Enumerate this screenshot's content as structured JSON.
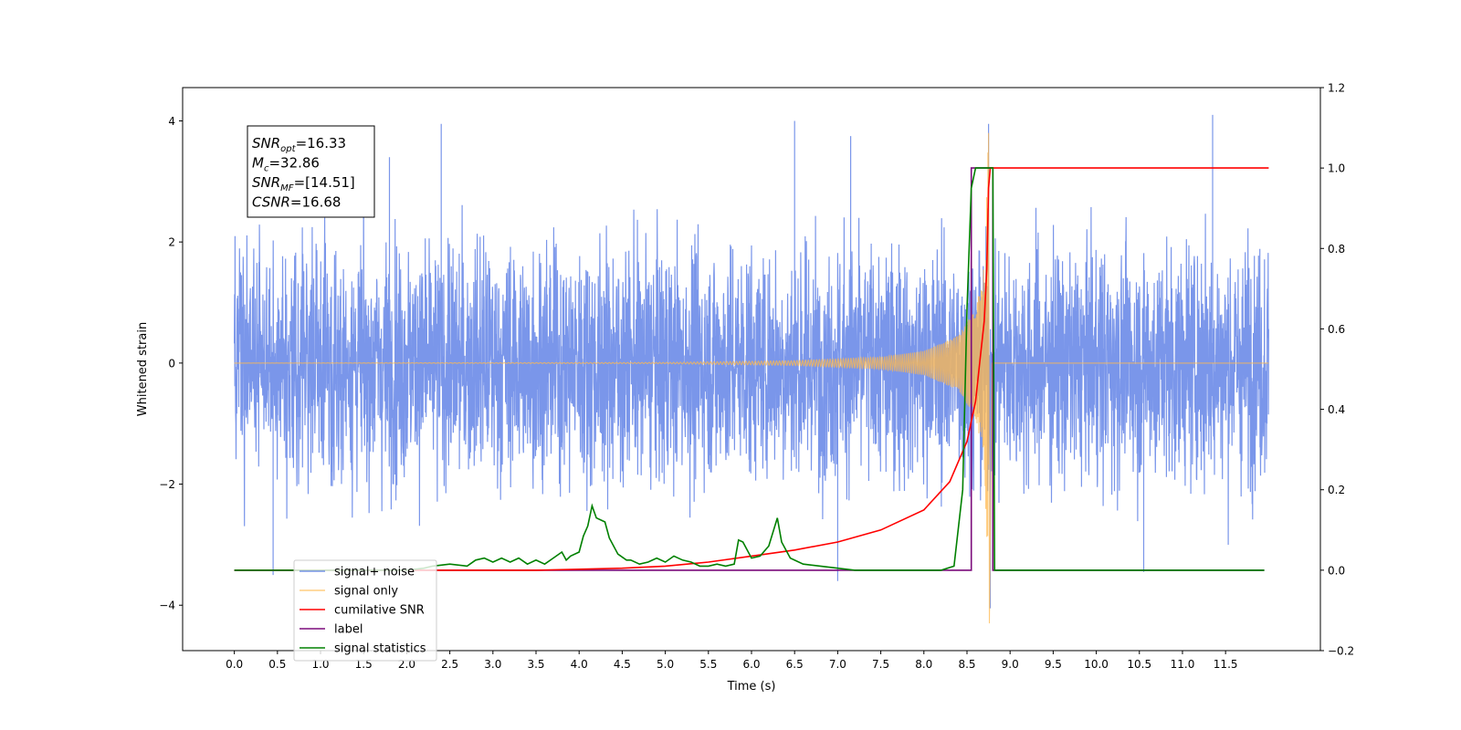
{
  "chart_data": {
    "type": "line",
    "xlabel": "Time (s)",
    "ylabel": "Whitened strain",
    "xlim": [
      -0.6,
      12.6
    ],
    "ylim": [
      -4.75,
      4.55
    ],
    "y2lim": [
      -0.2,
      1.2
    ],
    "xticks": [
      "0.0",
      "0.5",
      "1.0",
      "1.5",
      "2.0",
      "2.5",
      "3.0",
      "3.5",
      "4.0",
      "4.5",
      "5.0",
      "5.5",
      "6.0",
      "6.5",
      "7.0",
      "7.5",
      "8.0",
      "8.5",
      "9.0",
      "9.5",
      "10.0",
      "10.5",
      "11.0",
      "11.5"
    ],
    "yticks": [
      "4",
      "2",
      "0",
      "−2",
      "−4"
    ],
    "y2ticks": [
      "1.2",
      "1.0",
      "0.8",
      "0.6",
      "0.4",
      "0.2",
      "0.0",
      "−0.2"
    ],
    "grid": false,
    "legend_position": "lower-left",
    "annotation": {
      "lines": [
        {
          "sym": "SNR",
          "sub": "opt",
          "value": "=16.33"
        },
        {
          "sym": "M",
          "sub": "c",
          "value": "=32.86"
        },
        {
          "sym": "SNR",
          "sub": "MF",
          "value": "=[14.51]"
        },
        {
          "sym": "CSNR",
          "sub": "",
          "value": "=16.68"
        }
      ]
    },
    "series": [
      {
        "name": "signal+ noise",
        "color": "#4169e1",
        "axis": "left",
        "approx_std": 0.95,
        "spikes": [
          [
            0.45,
            -3.5
          ],
          [
            1.8,
            3.4
          ],
          [
            2.4,
            3.95
          ],
          [
            6.5,
            4.0
          ],
          [
            7.0,
            -3.6
          ],
          [
            7.15,
            3.75
          ],
          [
            8.75,
            3.95
          ],
          [
            8.77,
            -4.05
          ],
          [
            10.55,
            -3.45
          ],
          [
            11.35,
            4.1
          ]
        ]
      },
      {
        "name": "signal only",
        "color": "#ffb84d",
        "axis": "left",
        "merger_time": 8.75,
        "points": [
          [
            0.0,
            0.0
          ],
          [
            5.0,
            0.01
          ],
          [
            6.5,
            0.04
          ],
          [
            7.5,
            0.1
          ],
          [
            8.0,
            0.2
          ],
          [
            8.4,
            0.45
          ],
          [
            8.6,
            0.9
          ],
          [
            8.7,
            1.6
          ],
          [
            8.75,
            3.8
          ],
          [
            8.76,
            -4.3
          ],
          [
            8.8,
            0.0
          ],
          [
            12.0,
            0.0
          ]
        ]
      },
      {
        "name": "cumilative SNR",
        "color": "#ff0000",
        "axis": "right",
        "points": [
          [
            0.0,
            0.0
          ],
          [
            3.5,
            0.0
          ],
          [
            4.5,
            0.005
          ],
          [
            5.0,
            0.01
          ],
          [
            5.5,
            0.02
          ],
          [
            6.0,
            0.035
          ],
          [
            6.5,
            0.05
          ],
          [
            7.0,
            0.07
          ],
          [
            7.5,
            0.1
          ],
          [
            8.0,
            0.15
          ],
          [
            8.3,
            0.22
          ],
          [
            8.5,
            0.32
          ],
          [
            8.6,
            0.42
          ],
          [
            8.65,
            0.52
          ],
          [
            8.7,
            0.62
          ],
          [
            8.73,
            0.75
          ],
          [
            8.75,
            0.95
          ],
          [
            8.77,
            1.0
          ],
          [
            12.0,
            1.0
          ]
        ]
      },
      {
        "name": "label",
        "color": "#7b0b7b",
        "axis": "right",
        "points": [
          [
            0.0,
            0.0
          ],
          [
            8.55,
            0.0
          ],
          [
            8.55,
            1.0
          ],
          [
            8.8,
            1.0
          ],
          [
            8.8,
            0.0
          ],
          [
            11.95,
            0.0
          ]
        ]
      },
      {
        "name": "signal statistics",
        "color": "#008000",
        "axis": "right",
        "points": [
          [
            0.0,
            0.0
          ],
          [
            2.0,
            0.0
          ],
          [
            2.2,
            0.005
          ],
          [
            2.3,
            0.01
          ],
          [
            2.5,
            0.015
          ],
          [
            2.7,
            0.01
          ],
          [
            2.8,
            0.025
          ],
          [
            2.9,
            0.03
          ],
          [
            3.0,
            0.02
          ],
          [
            3.1,
            0.03
          ],
          [
            3.2,
            0.02
          ],
          [
            3.3,
            0.03
          ],
          [
            3.4,
            0.015
          ],
          [
            3.5,
            0.025
          ],
          [
            3.6,
            0.015
          ],
          [
            3.7,
            0.03
          ],
          [
            3.8,
            0.045
          ],
          [
            3.85,
            0.025
          ],
          [
            3.9,
            0.035
          ],
          [
            4.0,
            0.045
          ],
          [
            4.05,
            0.085
          ],
          [
            4.1,
            0.11
          ],
          [
            4.15,
            0.16
          ],
          [
            4.2,
            0.13
          ],
          [
            4.3,
            0.12
          ],
          [
            4.35,
            0.08
          ],
          [
            4.45,
            0.04
          ],
          [
            4.55,
            0.025
          ],
          [
            4.6,
            0.025
          ],
          [
            4.7,
            0.015
          ],
          [
            4.8,
            0.02
          ],
          [
            4.9,
            0.03
          ],
          [
            5.0,
            0.02
          ],
          [
            5.1,
            0.035
          ],
          [
            5.2,
            0.025
          ],
          [
            5.3,
            0.02
          ],
          [
            5.4,
            0.01
          ],
          [
            5.5,
            0.01
          ],
          [
            5.6,
            0.015
          ],
          [
            5.7,
            0.01
          ],
          [
            5.8,
            0.015
          ],
          [
            5.85,
            0.075
          ],
          [
            5.9,
            0.07
          ],
          [
            6.0,
            0.03
          ],
          [
            6.1,
            0.035
          ],
          [
            6.2,
            0.06
          ],
          [
            6.3,
            0.13
          ],
          [
            6.35,
            0.07
          ],
          [
            6.45,
            0.03
          ],
          [
            6.6,
            0.015
          ],
          [
            6.8,
            0.01
          ],
          [
            7.0,
            0.005
          ],
          [
            7.2,
            0.0
          ],
          [
            8.2,
            0.0
          ],
          [
            8.35,
            0.01
          ],
          [
            8.45,
            0.2
          ],
          [
            8.5,
            0.65
          ],
          [
            8.55,
            0.95
          ],
          [
            8.6,
            1.0
          ],
          [
            8.8,
            1.0
          ],
          [
            8.82,
            0.0
          ],
          [
            11.95,
            0.0
          ]
        ]
      }
    ]
  }
}
